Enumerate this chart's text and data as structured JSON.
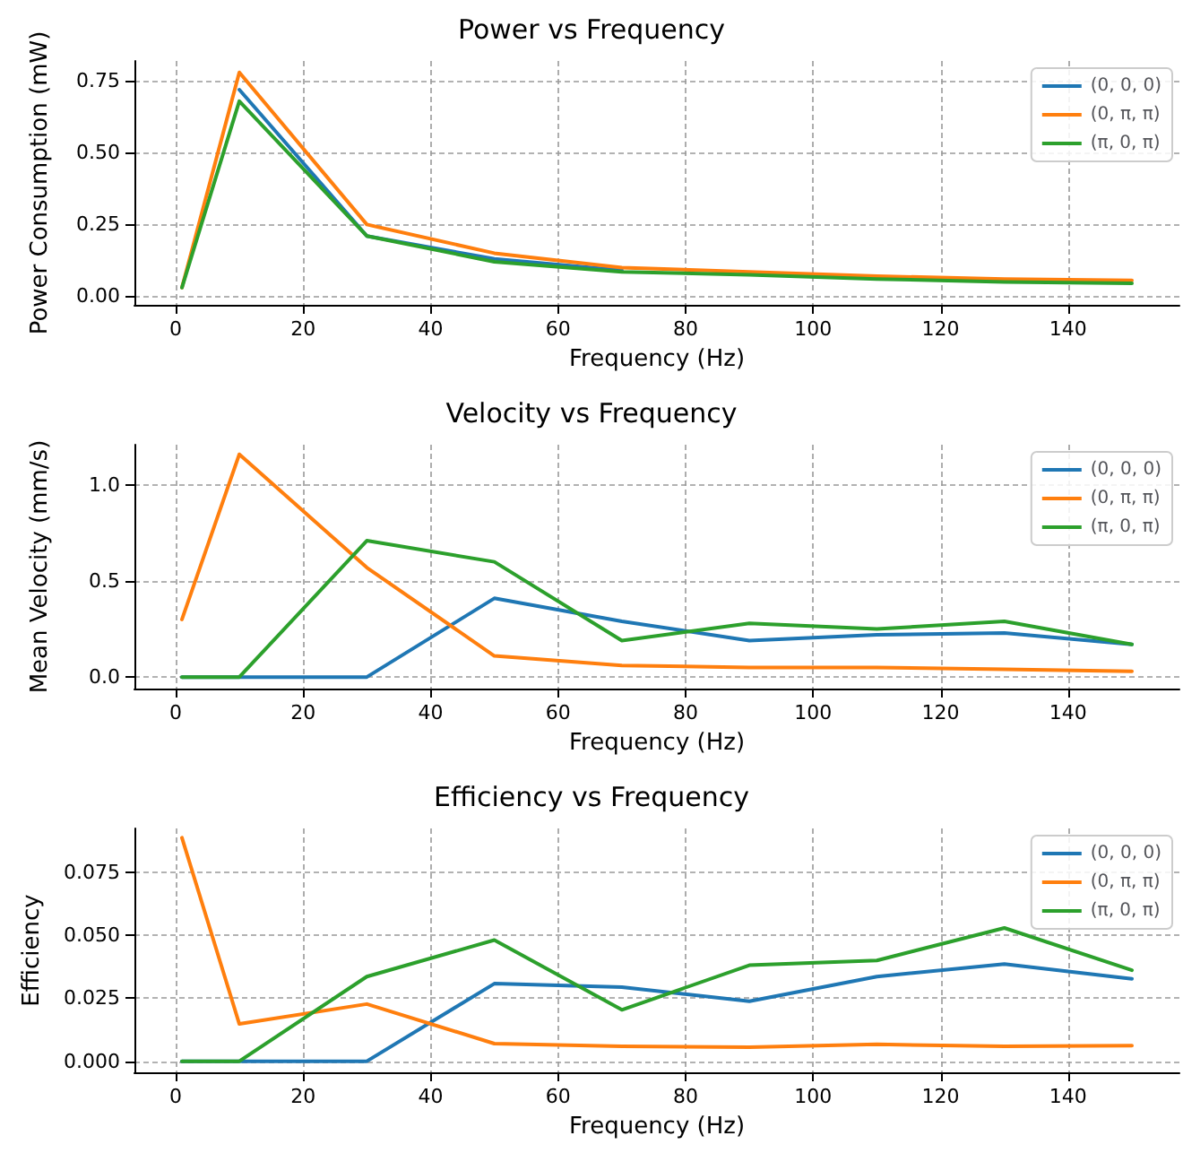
{
  "chart_data": [
    {
      "type": "line",
      "title": "Power vs Frequency",
      "xlabel": "Frequency (Hz)",
      "ylabel": "Power Consumption (mW)",
      "x": [
        1,
        10,
        30,
        50,
        70,
        90,
        110,
        130,
        150
      ],
      "series": [
        {
          "name": "(0, 0, 0)",
          "color": "#1f77b4",
          "values": [
            null,
            0.72,
            0.21,
            0.13,
            0.09,
            null,
            null,
            null,
            null
          ]
        },
        {
          "name": "(0, π, π)",
          "color": "#ff7f0e",
          "values": [
            0.03,
            0.78,
            0.25,
            0.15,
            0.1,
            0.085,
            0.07,
            0.06,
            0.055
          ]
        },
        {
          "name": "(π, 0, π)",
          "color": "#2ca02c",
          "values": [
            0.03,
            0.68,
            0.21,
            0.12,
            0.085,
            0.075,
            0.06,
            0.05,
            0.045
          ]
        }
      ],
      "xlim": [
        -6.45,
        157.45
      ],
      "xticks": [
        0,
        20,
        40,
        60,
        80,
        100,
        120,
        140
      ],
      "ylim": [
        -0.03,
        0.82
      ],
      "yticks": [
        {
          "value": 0,
          "label": "0.00"
        },
        {
          "value": 0.25,
          "label": "0.25"
        },
        {
          "value": 0.5,
          "label": "0.50"
        },
        {
          "value": 0.75,
          "label": "0.75"
        }
      ],
      "grid": true,
      "legend": "top right",
      "marker": "none",
      "line_style": "solid"
    },
    {
      "type": "line",
      "title": "Velocity vs Frequency",
      "xlabel": "Frequency (Hz)",
      "ylabel": "Mean Velocity (mm/s)",
      "x": [
        1,
        10,
        30,
        50,
        70,
        90,
        110,
        130,
        150
      ],
      "series": [
        {
          "name": "(0, 0, 0)",
          "color": "#1f77b4",
          "values": [
            0,
            0,
            0,
            0.41,
            0.29,
            0.19,
            0.22,
            0.23,
            0.17
          ]
        },
        {
          "name": "(0, π, π)",
          "color": "#ff7f0e",
          "values": [
            0.3,
            1.16,
            0.57,
            0.11,
            0.06,
            0.05,
            0.05,
            0.04,
            0.03
          ]
        },
        {
          "name": "(π, 0, π)",
          "color": "#2ca02c",
          "values": [
            0,
            0,
            0.71,
            0.6,
            0.19,
            0.28,
            0.25,
            0.29,
            0.17
          ]
        }
      ],
      "xlim": [
        -6.45,
        157.45
      ],
      "xticks": [
        0,
        20,
        40,
        60,
        80,
        100,
        120,
        140
      ],
      "ylim": [
        -0.06,
        1.21
      ],
      "yticks": [
        {
          "value": 0,
          "label": "0.0"
        },
        {
          "value": 0.5,
          "label": "0.5"
        },
        {
          "value": 1,
          "label": "1.0"
        }
      ],
      "grid": true,
      "legend": "top right",
      "marker": "none",
      "line_style": "solid"
    },
    {
      "type": "line",
      "title": "Efficiency vs Frequency",
      "xlabel": "Frequency (Hz)",
      "ylabel": "Efficiency",
      "x": [
        1,
        10,
        30,
        50,
        70,
        90,
        110,
        130,
        150
      ],
      "series": [
        {
          "name": "(0, 0, 0)",
          "color": "#1f77b4",
          "values": [
            0,
            0,
            0,
            0.0308,
            0.0294,
            0.0238,
            0.0336,
            0.0386,
            0.0327
          ]
        },
        {
          "name": "(0, π, π)",
          "color": "#ff7f0e",
          "values": [
            0.0887,
            0.0148,
            0.0227,
            0.007,
            0.0059,
            0.0056,
            0.0067,
            0.0059,
            0.0062
          ]
        },
        {
          "name": "(π, 0, π)",
          "color": "#2ca02c",
          "values": [
            0,
            0,
            0.0336,
            0.0481,
            0.0204,
            0.0381,
            0.04,
            0.0529,
            0.0361
          ]
        }
      ],
      "xlim": [
        -6.45,
        157.45
      ],
      "xticks": [
        0,
        20,
        40,
        60,
        80,
        100,
        120,
        140
      ],
      "ylim": [
        -0.0044,
        0.0924
      ],
      "yticks": [
        {
          "value": 0,
          "label": "0.000"
        },
        {
          "value": 0.025,
          "label": "0.025"
        },
        {
          "value": 0.05,
          "label": "0.050"
        },
        {
          "value": 0.075,
          "label": "0.075"
        }
      ],
      "grid": true,
      "legend": "top right",
      "marker": "none",
      "line_style": "solid"
    }
  ]
}
